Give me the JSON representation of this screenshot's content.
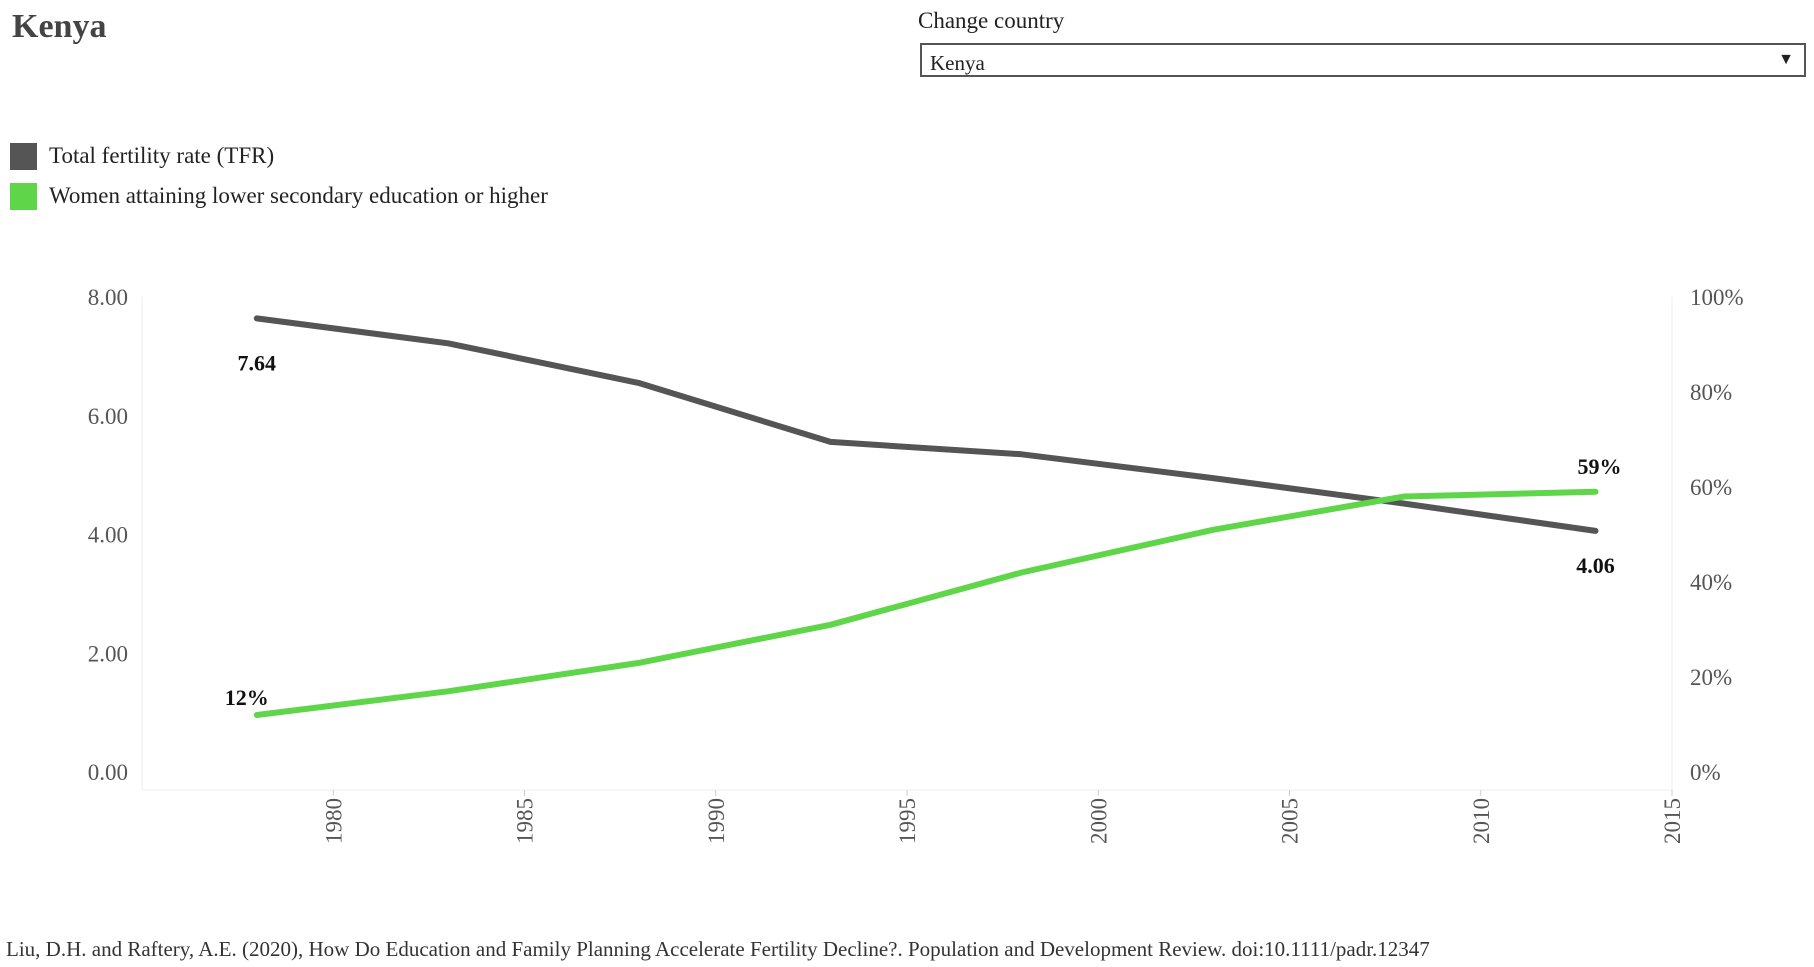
{
  "header": {
    "title": "Kenya",
    "change_country_label": "Change country",
    "selected_country": "Kenya",
    "dropdown_icon": "triangle-down-icon"
  },
  "footer": {
    "citation": "Liu, D.H. and Raftery, A.E. (2020), How Do Education and Family Planning Accelerate Fertility Decline?. Population and Development Review. doi:10.1111/padr.12347"
  },
  "chart_data": {
    "type": "line",
    "x": [
      1978,
      1983,
      1988,
      1993,
      1998,
      2003,
      2008,
      2013
    ],
    "xlim": [
      1975,
      2015
    ],
    "xticks": [
      "1980",
      "1985",
      "1990",
      "1995",
      "2000",
      "2005",
      "2010",
      "2015"
    ],
    "ylim_left": [
      0,
      8
    ],
    "yticks_left": [
      "0.00",
      "2.00",
      "4.00",
      "6.00",
      "8.00"
    ],
    "ylim_right": [
      0,
      100
    ],
    "yticks_right": [
      "0%",
      "20%",
      "40%",
      "60%",
      "80%",
      "100%"
    ],
    "grid": false,
    "legend_position": "top-left",
    "series": [
      {
        "name": "Total fertility rate (TFR)",
        "axis": "left",
        "color": "#555555",
        "values": [
          7.64,
          7.22,
          6.55,
          5.56,
          5.35,
          4.95,
          4.52,
          4.06
        ],
        "start_label": "7.64",
        "end_label": "4.06"
      },
      {
        "name": "Women attaining lower secondary education or higher",
        "axis": "right",
        "color": "#5fd64a",
        "values": [
          12,
          17,
          23,
          31,
          42,
          51,
          58,
          59
        ],
        "start_label": "12%",
        "end_label": "59%"
      }
    ]
  }
}
